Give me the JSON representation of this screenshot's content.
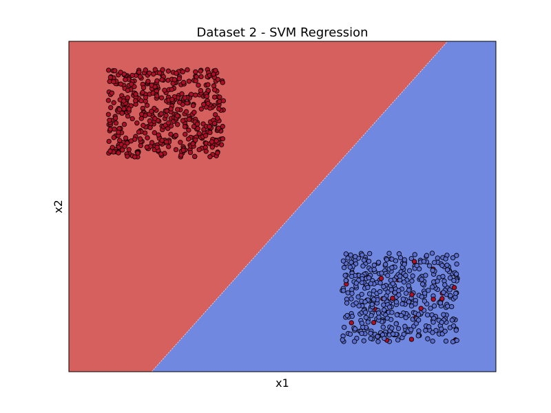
{
  "chart_data": {
    "type": "scatter",
    "title": "Dataset 2 - SVM Regression",
    "xlabel": "x1",
    "ylabel": "x2",
    "xlim": [
      0,
      10
    ],
    "ylim": [
      0,
      10
    ],
    "xticks": [],
    "yticks": [],
    "grid": false,
    "legend": "none",
    "decision_boundary": {
      "type": "line",
      "x_at_ylim_min": 1.94,
      "x_at_ylim_max": 8.87,
      "regions": [
        {
          "side": "upper-left",
          "class": 0,
          "color": "#d5605d"
        },
        {
          "side": "lower-right",
          "class": 1,
          "color": "#7088df"
        }
      ]
    },
    "clusters": [
      {
        "class_region": "upper-left",
        "x_range": [
          0.92,
          3.62
        ],
        "y_range": [
          6.5,
          9.15
        ],
        "count": 500,
        "seed": 11,
        "point_color": "#b30d26",
        "minority_color": "#3b4cc0",
        "minority_fraction": 0.0
      },
      {
        "class_region": "lower-right",
        "x_range": [
          6.4,
          9.1
        ],
        "y_range": [
          0.9,
          3.6
        ],
        "count": 460,
        "seed": 29,
        "point_color": "#5a6ed2",
        "minority_color": "#b30d26",
        "minority_fraction": 0.06
      }
    ],
    "marker": {
      "edge_color": "#000000"
    }
  }
}
